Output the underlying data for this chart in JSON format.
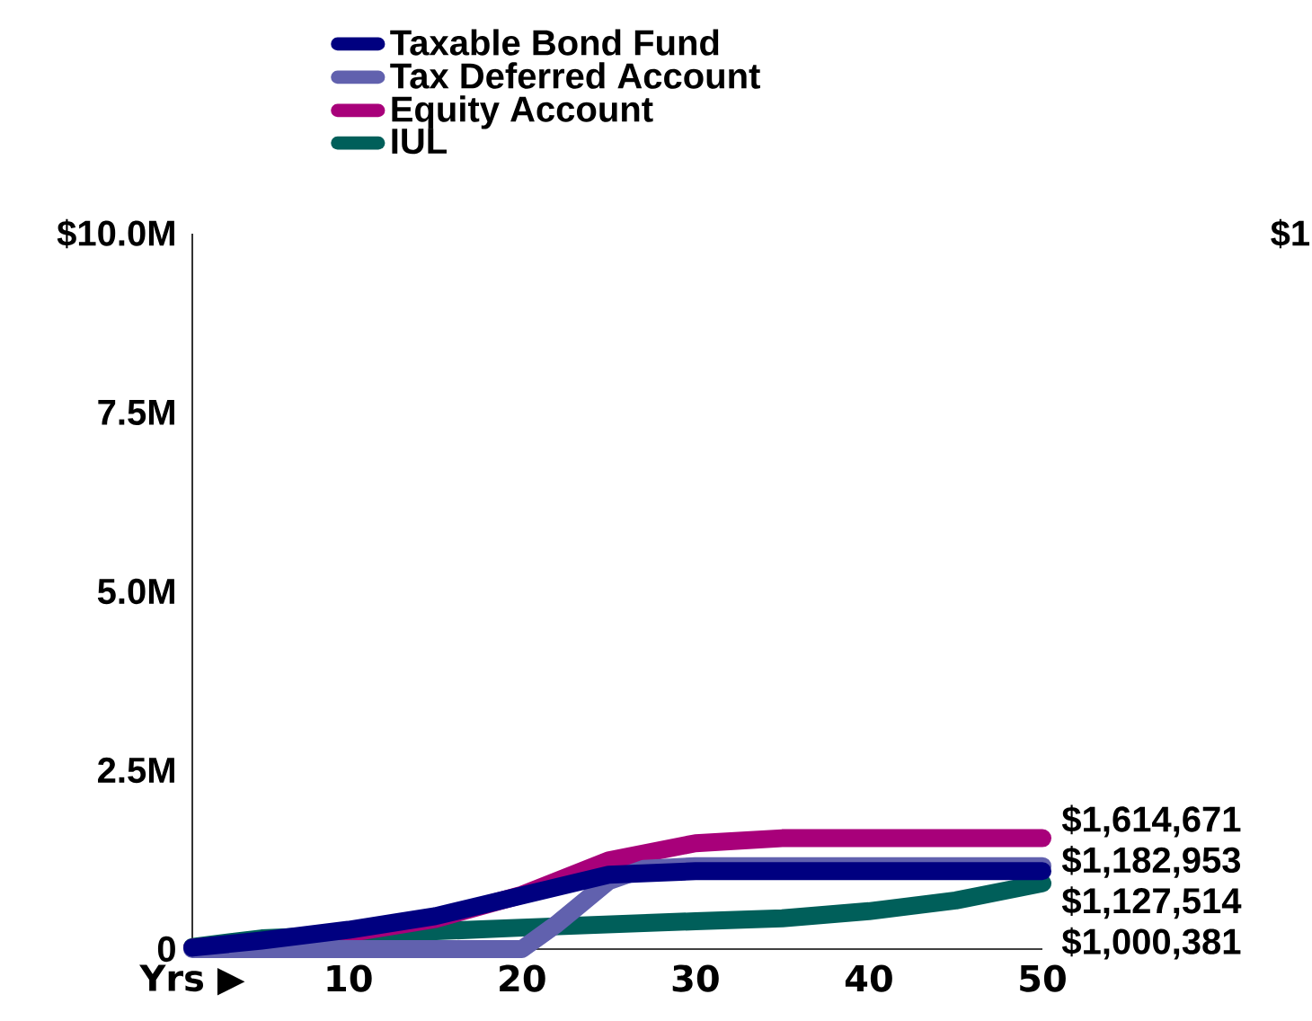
{
  "chart_data": {
    "type": "line",
    "legend": "top",
    "line_style": "solid",
    "marker": "none",
    "xlim": [
      1,
      50
    ],
    "xticks": [
      {
        "value": 1,
        "label": "Yrs ▶"
      },
      10,
      20,
      30,
      40,
      50
    ],
    "ylim": [
      0,
      10
    ],
    "yticks": [
      {
        "value": 0,
        "label": "0"
      },
      {
        "value": 2.5,
        "label": "2.5M"
      },
      {
        "value": 5,
        "label": "5.0M"
      },
      {
        "value": 7.5,
        "label": "7.5M"
      },
      {
        "value": 10,
        "label": "$10.0M"
      }
    ],
    "series": [
      {
        "name": "Taxable Bond Fund",
        "color": "#000080",
        "x": [
          1,
          5,
          10,
          15,
          20,
          25,
          30,
          35,
          40,
          45,
          50
        ],
        "values": [
          0.02,
          0.12,
          0.27,
          0.46,
          0.75,
          1.04,
          1.09,
          1.09,
          1.09,
          1.09,
          1.09
        ]
      },
      {
        "name": "Tax Deferred Account",
        "color": "#6161ae",
        "x": [
          1,
          5,
          10,
          15,
          20,
          22,
          25,
          27,
          30,
          35,
          40,
          45,
          50
        ],
        "values": [
          0,
          0,
          0,
          0,
          0,
          0.35,
          0.95,
          1.12,
          1.16,
          1.16,
          1.16,
          1.16,
          1.16
        ]
      },
      {
        "name": "Equity Account",
        "color": "#a8007a",
        "x": [
          1,
          5,
          10,
          15,
          20,
          25,
          30,
          35,
          40,
          45,
          50
        ],
        "values": [
          0.02,
          0.1,
          0.22,
          0.42,
          0.76,
          1.24,
          1.48,
          1.55,
          1.55,
          1.55,
          1.55
        ]
      },
      {
        "name": "IUL",
        "color": "#005f5a",
        "x": [
          1,
          5,
          10,
          20,
          30,
          35,
          40,
          45,
          50
        ],
        "values": [
          0.03,
          0.15,
          0.2,
          0.3,
          0.39,
          0.43,
          0.53,
          0.68,
          0.92
        ]
      }
    ],
    "annotations": [
      "$1",
      "$1,614,671",
      "$1,182,953",
      "$1,127,514",
      "$1,000,381"
    ]
  }
}
